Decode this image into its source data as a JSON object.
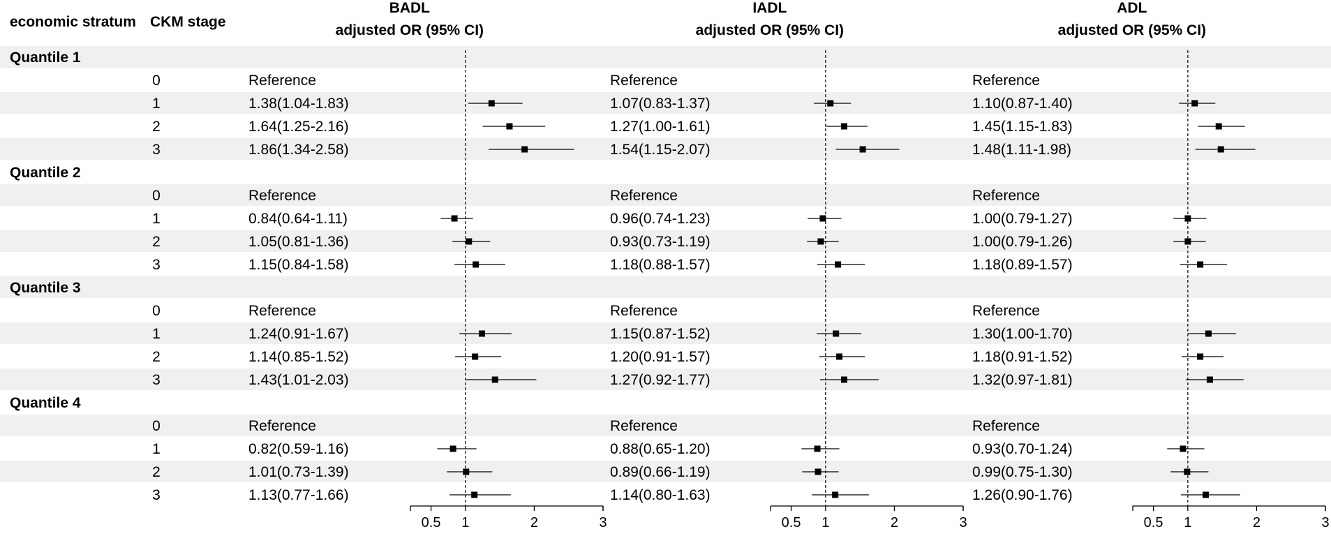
{
  "chart_data": {
    "type": "forest",
    "headers": {
      "stratum": "economic stratum",
      "stage": "CKM stage",
      "or_label": "adjusted OR (95% CI)"
    },
    "panels": [
      {
        "name": "BADL"
      },
      {
        "name": "IADL"
      },
      {
        "name": "ADL"
      }
    ],
    "axis": {
      "xlim": [
        0.2,
        3
      ],
      "ticks": [
        0.5,
        1,
        2,
        3
      ],
      "tick_labels": [
        "0.5",
        "1",
        "2",
        "3"
      ],
      "reference_line": 1
    },
    "groups": [
      {
        "label": "Quantile 1",
        "rows": [
          {
            "stage": "0",
            "cells": [
              {
                "text": "Reference",
                "or": null,
                "lo": null,
                "hi": null
              },
              {
                "text": "Reference",
                "or": null,
                "lo": null,
                "hi": null
              },
              {
                "text": "Reference",
                "or": null,
                "lo": null,
                "hi": null
              }
            ]
          },
          {
            "stage": "1",
            "cells": [
              {
                "text": "1.38(1.04-1.83)",
                "or": 1.38,
                "lo": 1.04,
                "hi": 1.83
              },
              {
                "text": "1.07(0.83-1.37)",
                "or": 1.07,
                "lo": 0.83,
                "hi": 1.37
              },
              {
                "text": "1.10(0.87-1.40)",
                "or": 1.1,
                "lo": 0.87,
                "hi": 1.4
              }
            ]
          },
          {
            "stage": "2",
            "cells": [
              {
                "text": "1.64(1.25-2.16)",
                "or": 1.64,
                "lo": 1.25,
                "hi": 2.16
              },
              {
                "text": "1.27(1.00-1.61)",
                "or": 1.27,
                "lo": 1.0,
                "hi": 1.61
              },
              {
                "text": "1.45(1.15-1.83)",
                "or": 1.45,
                "lo": 1.15,
                "hi": 1.83
              }
            ]
          },
          {
            "stage": "3",
            "cells": [
              {
                "text": "1.86(1.34-2.58)",
                "or": 1.86,
                "lo": 1.34,
                "hi": 2.58
              },
              {
                "text": "1.54(1.15-2.07)",
                "or": 1.54,
                "lo": 1.15,
                "hi": 2.07
              },
              {
                "text": "1.48(1.11-1.98)",
                "or": 1.48,
                "lo": 1.11,
                "hi": 1.98
              }
            ]
          }
        ]
      },
      {
        "label": "Quantile 2",
        "rows": [
          {
            "stage": "0",
            "cells": [
              {
                "text": "Reference",
                "or": null,
                "lo": null,
                "hi": null
              },
              {
                "text": "Reference",
                "or": null,
                "lo": null,
                "hi": null
              },
              {
                "text": "Reference",
                "or": null,
                "lo": null,
                "hi": null
              }
            ]
          },
          {
            "stage": "1",
            "cells": [
              {
                "text": "0.84(0.64-1.11)",
                "or": 0.84,
                "lo": 0.64,
                "hi": 1.11
              },
              {
                "text": "0.96(0.74-1.23)",
                "or": 0.96,
                "lo": 0.74,
                "hi": 1.23
              },
              {
                "text": "1.00(0.79-1.27)",
                "or": 1.0,
                "lo": 0.79,
                "hi": 1.27
              }
            ]
          },
          {
            "stage": "2",
            "cells": [
              {
                "text": "1.05(0.81-1.36)",
                "or": 1.05,
                "lo": 0.81,
                "hi": 1.36
              },
              {
                "text": "0.93(0.73-1.19)",
                "or": 0.93,
                "lo": 0.73,
                "hi": 1.19
              },
              {
                "text": "1.00(0.79-1.26)",
                "or": 1.0,
                "lo": 0.79,
                "hi": 1.26
              }
            ]
          },
          {
            "stage": "3",
            "cells": [
              {
                "text": "1.15(0.84-1.58)",
                "or": 1.15,
                "lo": 0.84,
                "hi": 1.58
              },
              {
                "text": "1.18(0.88-1.57)",
                "or": 1.18,
                "lo": 0.88,
                "hi": 1.57
              },
              {
                "text": "1.18(0.89-1.57)",
                "or": 1.18,
                "lo": 0.89,
                "hi": 1.57
              }
            ]
          }
        ]
      },
      {
        "label": "Quantile 3",
        "rows": [
          {
            "stage": "0",
            "cells": [
              {
                "text": "Reference",
                "or": null,
                "lo": null,
                "hi": null
              },
              {
                "text": "Reference",
                "or": null,
                "lo": null,
                "hi": null
              },
              {
                "text": "Reference",
                "or": null,
                "lo": null,
                "hi": null
              }
            ]
          },
          {
            "stage": "1",
            "cells": [
              {
                "text": "1.24(0.91-1.67)",
                "or": 1.24,
                "lo": 0.91,
                "hi": 1.67
              },
              {
                "text": "1.15(0.87-1.52)",
                "or": 1.15,
                "lo": 0.87,
                "hi": 1.52
              },
              {
                "text": "1.30(1.00-1.70)",
                "or": 1.3,
                "lo": 1.0,
                "hi": 1.7
              }
            ]
          },
          {
            "stage": "2",
            "cells": [
              {
                "text": "1.14(0.85-1.52)",
                "or": 1.14,
                "lo": 0.85,
                "hi": 1.52
              },
              {
                "text": "1.20(0.91-1.57)",
                "or": 1.2,
                "lo": 0.91,
                "hi": 1.57
              },
              {
                "text": "1.18(0.91-1.52)",
                "or": 1.18,
                "lo": 0.91,
                "hi": 1.52
              }
            ]
          },
          {
            "stage": "3",
            "cells": [
              {
                "text": "1.43(1.01-2.03)",
                "or": 1.43,
                "lo": 1.01,
                "hi": 2.03
              },
              {
                "text": "1.27(0.92-1.77)",
                "or": 1.27,
                "lo": 0.92,
                "hi": 1.77
              },
              {
                "text": "1.32(0.97-1.81)",
                "or": 1.32,
                "lo": 0.97,
                "hi": 1.81
              }
            ]
          }
        ]
      },
      {
        "label": "Quantile 4",
        "rows": [
          {
            "stage": "0",
            "cells": [
              {
                "text": "Reference",
                "or": null,
                "lo": null,
                "hi": null
              },
              {
                "text": "Reference",
                "or": null,
                "lo": null,
                "hi": null
              },
              {
                "text": "Reference",
                "or": null,
                "lo": null,
                "hi": null
              }
            ]
          },
          {
            "stage": "1",
            "cells": [
              {
                "text": "0.82(0.59-1.16)",
                "or": 0.82,
                "lo": 0.59,
                "hi": 1.16
              },
              {
                "text": "0.88(0.65-1.20)",
                "or": 0.88,
                "lo": 0.65,
                "hi": 1.2
              },
              {
                "text": "0.93(0.70-1.24)",
                "or": 0.93,
                "lo": 0.7,
                "hi": 1.24
              }
            ]
          },
          {
            "stage": "2",
            "cells": [
              {
                "text": "1.01(0.73-1.39)",
                "or": 1.01,
                "lo": 0.73,
                "hi": 1.39
              },
              {
                "text": "0.89(0.66-1.19)",
                "or": 0.89,
                "lo": 0.66,
                "hi": 1.19
              },
              {
                "text": "0.99(0.75-1.30)",
                "or": 0.99,
                "lo": 0.75,
                "hi": 1.3
              }
            ]
          },
          {
            "stage": "3",
            "cells": [
              {
                "text": "1.13(0.77-1.66)",
                "or": 1.13,
                "lo": 0.77,
                "hi": 1.66
              },
              {
                "text": "1.14(0.80-1.63)",
                "or": 1.14,
                "lo": 0.8,
                "hi": 1.63
              },
              {
                "text": "1.26(0.90-1.76)",
                "or": 1.26,
                "lo": 0.9,
                "hi": 1.76
              }
            ]
          }
        ]
      }
    ]
  }
}
